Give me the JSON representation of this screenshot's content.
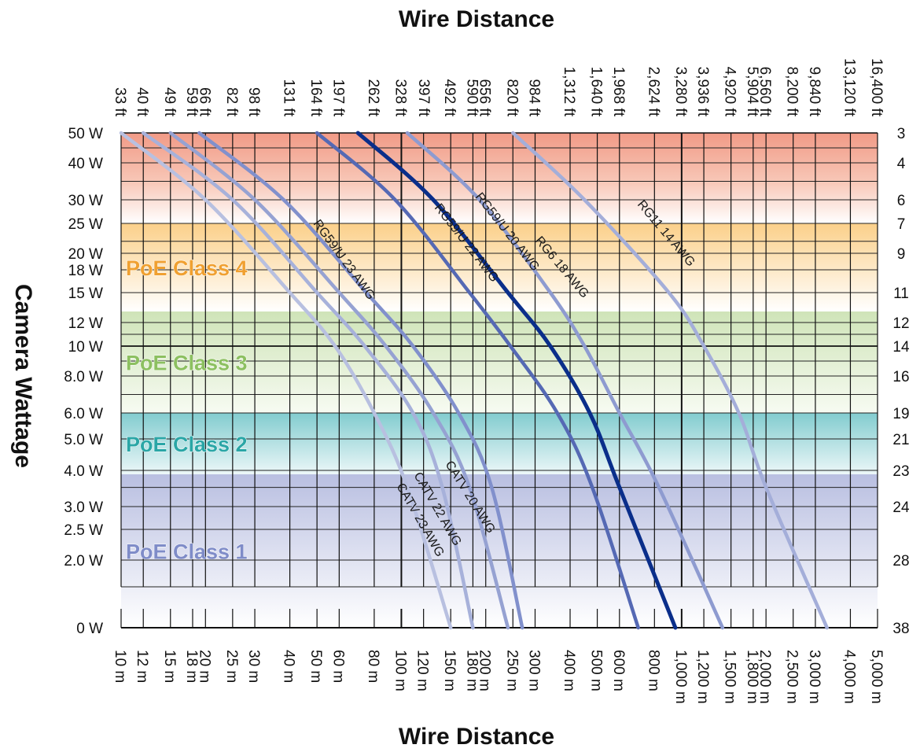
{
  "chart_data": {
    "type": "line",
    "title_top": "Wire Distance",
    "title_bottom": "Wire Distance",
    "ylabel": "Camera Wattage",
    "x_scale": "log",
    "x_range_m": [
      10,
      5000
    ],
    "y_tick_labels": [
      "0 W",
      "2.0 W",
      "2.5 W",
      "3.0 W",
      "4.0 W",
      "5.0 W",
      "6.0 W",
      "8.0 W",
      "10 W",
      "12 W",
      "15 W",
      "18 W",
      "20 W",
      "25 W",
      "30 W",
      "40 W",
      "50 W"
    ],
    "y_right_labels": [
      "38",
      "28",
      "24",
      "23",
      "21",
      "19",
      "16",
      "14",
      "12",
      "11",
      "9",
      "7",
      "6",
      "4",
      "3"
    ],
    "x_bottom_ticks": [
      {
        "m": 10,
        "label": "10 m"
      },
      {
        "m": 12,
        "label": "12 m"
      },
      {
        "m": 15,
        "label": "15 m"
      },
      {
        "m": 18,
        "label": "18 m"
      },
      {
        "m": 20,
        "label": "20 m"
      },
      {
        "m": 25,
        "label": "25 m"
      },
      {
        "m": 30,
        "label": "30 m"
      },
      {
        "m": 40,
        "label": "40 m"
      },
      {
        "m": 50,
        "label": "50 m"
      },
      {
        "m": 60,
        "label": "60 m"
      },
      {
        "m": 80,
        "label": "80 m"
      },
      {
        "m": 100,
        "label": "100 m"
      },
      {
        "m": 120,
        "label": "120 m"
      },
      {
        "m": 150,
        "label": "150 m"
      },
      {
        "m": 180,
        "label": "180 m"
      },
      {
        "m": 200,
        "label": "200 m"
      },
      {
        "m": 250,
        "label": "250 m"
      },
      {
        "m": 300,
        "label": "300 m"
      },
      {
        "m": 400,
        "label": "400 m"
      },
      {
        "m": 500,
        "label": "500 m"
      },
      {
        "m": 600,
        "label": "600 m"
      },
      {
        "m": 800,
        "label": "800 m"
      },
      {
        "m": 1000,
        "label": "1,000 m"
      },
      {
        "m": 1200,
        "label": "1,200 m"
      },
      {
        "m": 1500,
        "label": "1,500 m"
      },
      {
        "m": 1800,
        "label": "1,800 m"
      },
      {
        "m": 2000,
        "label": "2,000 m"
      },
      {
        "m": 2500,
        "label": "2,500 m"
      },
      {
        "m": 3000,
        "label": "3,000 m"
      },
      {
        "m": 4000,
        "label": "4,000 m"
      },
      {
        "m": 5000,
        "label": "5,000 m"
      }
    ],
    "x_top_ticks": [
      {
        "m": 10,
        "label": "33 ft"
      },
      {
        "m": 12,
        "label": "40 ft"
      },
      {
        "m": 15,
        "label": "49 ft"
      },
      {
        "m": 18,
        "label": "59 ft"
      },
      {
        "m": 20,
        "label": "66 ft"
      },
      {
        "m": 25,
        "label": "82 ft"
      },
      {
        "m": 30,
        "label": "98 ft"
      },
      {
        "m": 40,
        "label": "131 ft"
      },
      {
        "m": 50,
        "label": "164 ft"
      },
      {
        "m": 60,
        "label": "197 ft"
      },
      {
        "m": 80,
        "label": "262 ft"
      },
      {
        "m": 100,
        "label": "328 ft"
      },
      {
        "m": 121,
        "label": "397 ft"
      },
      {
        "m": 150,
        "label": "492 ft"
      },
      {
        "m": 180,
        "label": "590 ft"
      },
      {
        "m": 200,
        "label": "656 ft"
      },
      {
        "m": 250,
        "label": "820 ft"
      },
      {
        "m": 300,
        "label": "984 ft"
      },
      {
        "m": 400,
        "label": "1,312 ft"
      },
      {
        "m": 500,
        "label": "1,640 ft"
      },
      {
        "m": 600,
        "label": "1,968 ft"
      },
      {
        "m": 800,
        "label": "2,624 ft"
      },
      {
        "m": 1000,
        "label": "3,280 ft"
      },
      {
        "m": 1200,
        "label": "3,936 ft"
      },
      {
        "m": 1500,
        "label": "4,920 ft"
      },
      {
        "m": 1800,
        "label": "5,904 ft"
      },
      {
        "m": 2000,
        "label": "6,560 ft"
      },
      {
        "m": 2500,
        "label": "8,200 ft"
      },
      {
        "m": 3000,
        "label": "9,840 ft"
      },
      {
        "m": 4000,
        "label": "13,120 ft"
      },
      {
        "m": 5000,
        "label": "16,400 ft"
      }
    ],
    "poe_classes": [
      {
        "label": "PoE Class 4",
        "w_from": 13,
        "w_to": 25,
        "color": "#f0a030"
      },
      {
        "label": "PoE Class 3",
        "w_from": 6,
        "w_to": 13,
        "color": "#8cc060"
      },
      {
        "label": "PoE Class 2",
        "w_from": 3.84,
        "w_to": 6,
        "color": "#2aa6a6"
      },
      {
        "label": "PoE Class 1",
        "w_from": 0,
        "w_to": 3.84,
        "color": "#7f8cc8"
      }
    ],
    "series": [
      {
        "name": "CATV 23 AWG",
        "color": "#b8c0e0",
        "width": 4.5,
        "points": [
          [
            10,
            50
          ],
          [
            20,
            30
          ],
          [
            40,
            15
          ],
          [
            58,
            10
          ],
          [
            80,
            6
          ],
          [
            105,
            3.5
          ],
          [
            150,
            0
          ]
        ]
      },
      {
        "name": "CATV 22 AWG",
        "color": "#a7b1da",
        "width": 4.5,
        "points": [
          [
            12,
            50
          ],
          [
            25,
            30
          ],
          [
            50,
            15
          ],
          [
            74,
            10
          ],
          [
            110,
            6
          ],
          [
            140,
            3.5
          ],
          [
            180,
            0
          ]
        ]
      },
      {
        "name": "CATV 20 AWG",
        "color": "#96a2d2",
        "width": 4.5,
        "points": [
          [
            15,
            50
          ],
          [
            30,
            30
          ],
          [
            60,
            15
          ],
          [
            88,
            10
          ],
          [
            130,
            6
          ],
          [
            175,
            3.5
          ],
          [
            240,
            0
          ]
        ]
      },
      {
        "name": "RG59/U 23 AWG",
        "color": "#8190cc",
        "width": 4.5,
        "points": [
          [
            19,
            50
          ],
          [
            38,
            30
          ],
          [
            75,
            15
          ],
          [
            110,
            10
          ],
          [
            160,
            6
          ],
          [
            210,
            3.5
          ],
          [
            270,
            0
          ]
        ]
      },
      {
        "name": "RG59/U 22 AWG",
        "color": "#5569b4",
        "width": 4.5,
        "points": [
          [
            50,
            50
          ],
          [
            95,
            30
          ],
          [
            175,
            15
          ],
          [
            245,
            10
          ],
          [
            360,
            6
          ],
          [
            480,
            3.5
          ],
          [
            700,
            0
          ]
        ]
      },
      {
        "name": "RG59/U 20 AWG",
        "color": "#0a2e8a",
        "width": 5,
        "points": [
          [
            70,
            50
          ],
          [
            130,
            30
          ],
          [
            240,
            15
          ],
          [
            340,
            10
          ],
          [
            470,
            6
          ],
          [
            600,
            3.5
          ],
          [
            950,
            0
          ]
        ]
      },
      {
        "name": "RG6 18 AWG",
        "color": "#8e9bd0",
        "width": 4.5,
        "points": [
          [
            105,
            50
          ],
          [
            190,
            30
          ],
          [
            340,
            15
          ],
          [
            450,
            10
          ],
          [
            600,
            6
          ],
          [
            830,
            3.5
          ],
          [
            1400,
            0
          ]
        ]
      },
      {
        "name": "RG11 14 AWG",
        "color": "#a4aed9",
        "width": 4.5,
        "points": [
          [
            250,
            50
          ],
          [
            450,
            30
          ],
          [
            900,
            15
          ],
          [
            1200,
            10
          ],
          [
            1600,
            6
          ],
          [
            2000,
            3.5
          ],
          [
            3300,
            0
          ]
        ]
      }
    ],
    "curve_labels": [
      {
        "text": "RG59/U 23 AWG",
        "series": "RG59/U 23 AWG"
      },
      {
        "text": "RG59/U 22 AWG",
        "series": "RG59/U 22 AWG"
      },
      {
        "text": "RG59/U 20 AWG",
        "series": "RG59/U 20 AWG"
      },
      {
        "text": "RG6 18 AWG",
        "series": "RG6 18 AWG"
      },
      {
        "text": "RG11 14 AWG",
        "series": "RG11 14 AWG"
      },
      {
        "text": "CATV 20 AWG",
        "series": "CATV 20 AWG"
      },
      {
        "text": "CATV 22 AWG",
        "series": "CATV 22 AWG"
      },
      {
        "text": "CATV 23 AWG",
        "series": "CATV 23 AWG"
      }
    ]
  }
}
